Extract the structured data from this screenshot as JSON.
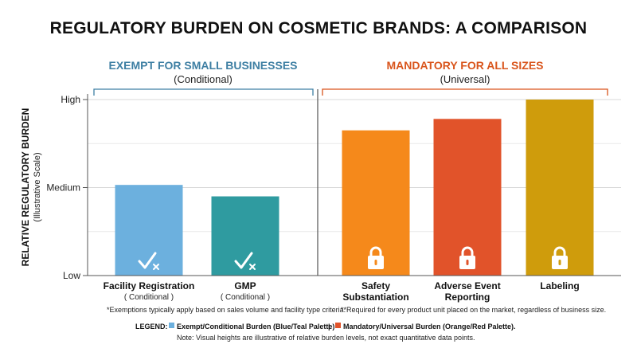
{
  "chart_data": {
    "type": "bar",
    "title": "REGULATORY BURDEN ON COSMETIC BRANDS: A COMPARISON",
    "ylabel": "RELATIVE REGULATORY BURDEN",
    "ylabel_sub": "(Illustrative Scale)",
    "y_ticks": [
      {
        "label": "Low",
        "value": 0
      },
      {
        "label": "Medium",
        "value": 1
      },
      {
        "label": "High",
        "value": 2
      }
    ],
    "ylim": [
      0,
      2
    ],
    "groups": [
      {
        "title": "EXEMPT FOR SMALL BUSINESSES",
        "subtitle": "(Conditional)",
        "color": "#3e7fa3",
        "footnote": "*Exemptions typically apply based on sales volume and facility type criteria.",
        "bars": [
          {
            "category": "Facility Registration",
            "sub": "( Conditional )",
            "value": 1.03,
            "color": "#6cb0de",
            "icon": "check-x-icon"
          },
          {
            "category": "GMP",
            "sub": "( Conditional )",
            "value": 0.9,
            "color": "#2f9ba0",
            "icon": "check-x-icon"
          }
        ]
      },
      {
        "title": "MANDATORY FOR ALL SIZES",
        "subtitle": "(Universal)",
        "color": "#d9551c",
        "footnote": "**Required for every product unit placed on the market, regardless of business size.",
        "bars": [
          {
            "category": "Safety",
            "category2": "Substantiation",
            "value": 1.65,
            "color": "#f5891b",
            "icon": "lock-icon"
          },
          {
            "category": "Adverse Event",
            "category2": "Reporting",
            "value": 1.78,
            "color": "#e1532a",
            "icon": "lock-icon"
          },
          {
            "category": "Labeling",
            "value": 2.0,
            "color": "#cf9c0c",
            "icon": "lock-icon"
          }
        ]
      }
    ],
    "grid": true,
    "legend": {
      "label": "LEGEND:",
      "items": [
        {
          "label": "Exempt/Conditional Burden (Blue/Teal Palette)",
          "color": "#6cb0de"
        },
        {
          "label": "Mandatory/Universal Burden (Orange/Red Palette).",
          "color": "#e1532a"
        }
      ],
      "separator": "|",
      "note": "Note: Visual heights are illustrative of relative burden levels, not exact quantitative data points."
    }
  }
}
